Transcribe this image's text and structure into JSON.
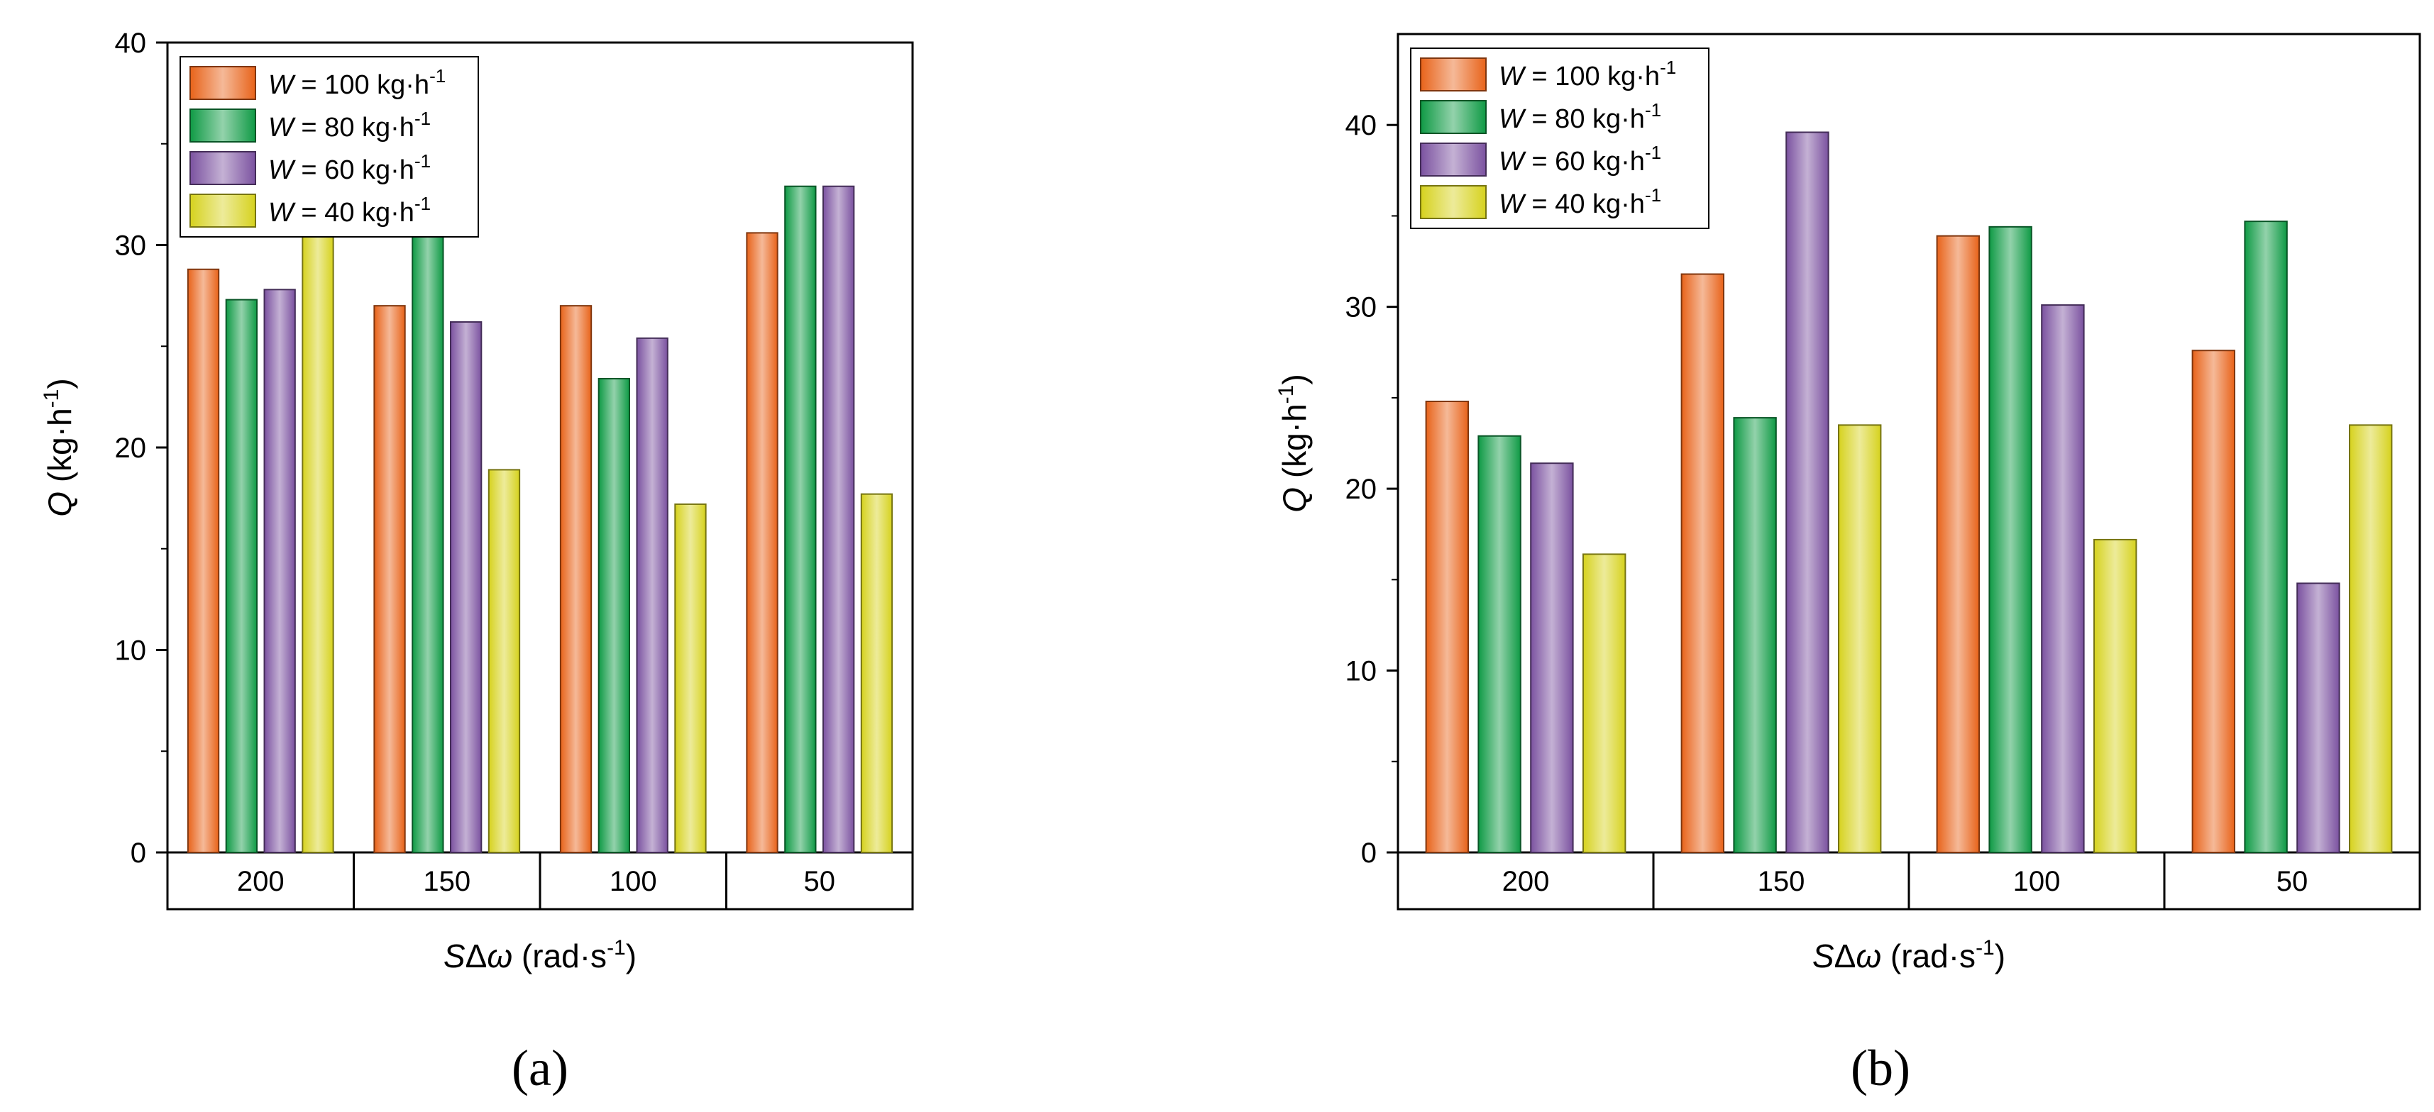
{
  "chart_data": [
    {
      "type": "bar",
      "panel": "(a)",
      "categories": [
        "200",
        "150",
        "100",
        "50"
      ],
      "xlabel": {
        "var": "S",
        "delta": "Δ",
        "omega": "ω",
        "unit": " (rad·s",
        "exp": "-1",
        "close": ")"
      },
      "ylabel": {
        "var": "Q",
        "unit": " (kg·h",
        "exp": "-1",
        "close": ")"
      },
      "ylim": [
        0,
        40
      ],
      "yticks": [
        0,
        10,
        20,
        30,
        40
      ],
      "legend": "top-left",
      "series": [
        {
          "name": "W = 100 kg·h-1",
          "legend_var": "W",
          "legend_text": " = 100 kg·h",
          "legend_exp": "-1",
          "color": "#e8631a",
          "values": [
            28.8,
            27.0,
            27.0,
            30.6
          ]
        },
        {
          "name": "W = 80 kg·h-1",
          "legend_var": "W",
          "legend_text": " = 80 kg·h",
          "legend_exp": "-1",
          "color": "#0f9a45",
          "values": [
            27.3,
            34.2,
            23.4,
            32.9
          ]
        },
        {
          "name": "W = 60 kg·h-1",
          "legend_var": "W",
          "legend_text": " = 60 kg·h",
          "legend_exp": "-1",
          "color": "#7b52a0",
          "values": [
            27.8,
            26.2,
            25.4,
            32.9
          ]
        },
        {
          "name": "W = 40 kg·h-1",
          "legend_var": "W",
          "legend_text": " = 40 kg·h",
          "legend_exp": "-1",
          "color": "#d6d21e",
          "values": [
            30.8,
            18.9,
            17.2,
            17.7
          ]
        }
      ]
    },
    {
      "type": "bar",
      "panel": "(b)",
      "categories": [
        "200",
        "150",
        "100",
        "50"
      ],
      "xlabel": {
        "var": "S",
        "delta": "Δ",
        "omega": "ω",
        "unit": " (rad·s",
        "exp": "-1",
        "close": ")"
      },
      "ylabel": {
        "var": "Q",
        "unit": " (kg·h",
        "exp": "-1",
        "close": ")"
      },
      "ylim": [
        0,
        45
      ],
      "yticks": [
        0,
        10,
        20,
        30,
        40
      ],
      "legend": "top-left",
      "series": [
        {
          "name": "W = 100 kg·h-1",
          "legend_var": "W",
          "legend_text": " = 100 kg·h",
          "legend_exp": "-1",
          "color": "#e8631a",
          "values": [
            24.8,
            31.8,
            33.9,
            27.6
          ]
        },
        {
          "name": "W = 80 kg·h-1",
          "legend_var": "W",
          "legend_text": " = 80 kg·h",
          "legend_exp": "-1",
          "color": "#0f9a45",
          "values": [
            22.9,
            23.9,
            34.4,
            34.7
          ]
        },
        {
          "name": "W = 60 kg·h-1",
          "legend_var": "W",
          "legend_text": " = 60 kg·h",
          "legend_exp": "-1",
          "color": "#7b52a0",
          "values": [
            21.4,
            39.6,
            30.1,
            14.8
          ]
        },
        {
          "name": "W = 40 kg·h-1",
          "legend_var": "W",
          "legend_text": " = 40 kg·h",
          "legend_exp": "-1",
          "color": "#d6d21e",
          "values": [
            16.4,
            23.5,
            17.2,
            23.5
          ]
        }
      ]
    }
  ]
}
